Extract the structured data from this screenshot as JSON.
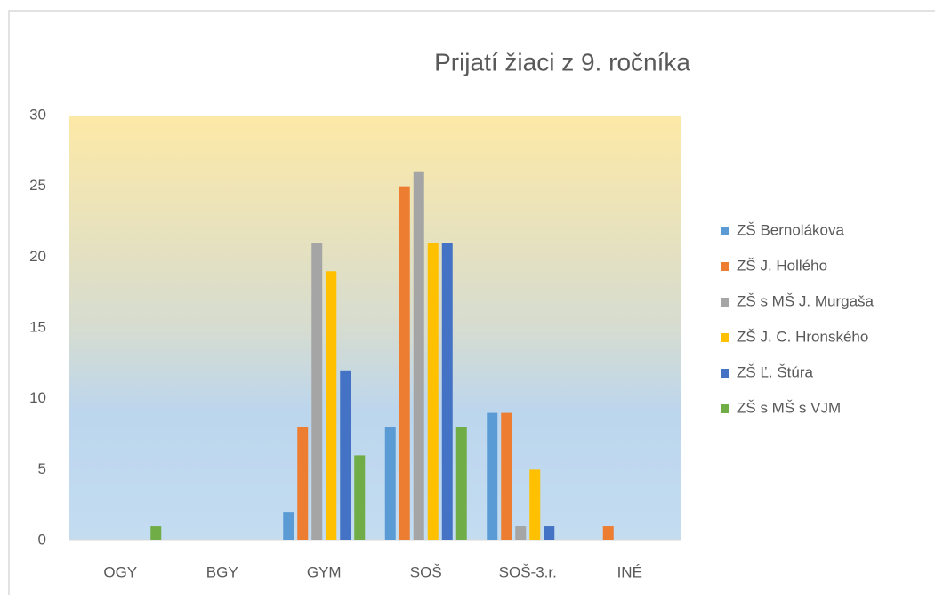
{
  "chart_data": {
    "type": "bar",
    "title": "Prijatí žiaci z 9. ročníka",
    "categories": [
      "OGY",
      "BGY",
      "GYM",
      "SOŠ",
      "SOŠ-3.r.",
      "INÉ"
    ],
    "series": [
      {
        "name": "ZŠ Bernolákova",
        "color": "#5b9bd5",
        "values": [
          0,
          0,
          2,
          8,
          9,
          0
        ]
      },
      {
        "name": "ZŠ J. Hollého",
        "color": "#ed7d31",
        "values": [
          0,
          0,
          8,
          25,
          9,
          1
        ]
      },
      {
        "name": "ZŠ s MŠ J. Murgaša",
        "color": "#a5a5a5",
        "values": [
          0,
          0,
          21,
          26,
          1,
          0
        ]
      },
      {
        "name": "ZŠ J. C. Hronského",
        "color": "#ffc000",
        "values": [
          0,
          0,
          19,
          21,
          5,
          0
        ]
      },
      {
        "name": "ZŠ Ľ. Štúra",
        "color": "#4472c4",
        "values": [
          0,
          0,
          12,
          21,
          1,
          0
        ]
      },
      {
        "name": "ZŠ s MŠ s VJM",
        "color": "#70ad47",
        "values": [
          1,
          0,
          6,
          8,
          0,
          0
        ]
      }
    ],
    "ylim": [
      0,
      30
    ],
    "yticks": [
      0,
      5,
      10,
      15,
      20,
      25,
      30
    ],
    "grid": false,
    "legend": "right"
  }
}
